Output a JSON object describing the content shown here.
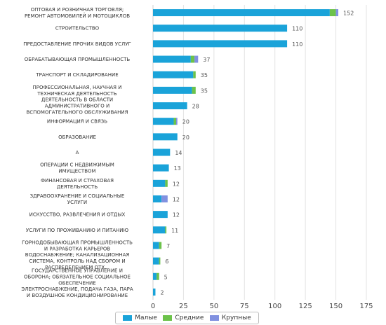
{
  "chart_data": {
    "type": "bar",
    "orientation": "horizontal",
    "stacked": true,
    "categories": [
      "ОПТОВАЯ И РОЗНИЧНАЯ ТОРГОВЛЯ; РЕМОНТ АВТОМОБИЛЕЙ И МОТОЦИКЛОВ",
      "СТРОИТЕЛЬСТВО",
      "ПРЕДОСТАВЛЕНИЕ ПРОЧИХ ВИДОВ УСЛУГ",
      "ОБРАБАТЫВАЮЩАЯ ПРОМЫШЛЕННОСТЬ",
      "ТРАНСПОРТ И СКЛАДИРОВАНИЕ",
      "ПРОФЕССИОНАЛЬНАЯ, НАУЧНАЯ И ТЕХНИЧЕСКАЯ ДЕЯТЕЛЬНОСТЬ",
      "ДЕЯТЕЛЬНОСТЬ В ОБЛАСТИ АДМИНИСТРАТИВНОГО И ВСПОМОГАТЕЛЬНОГО ОБСЛУЖИВАНИЯ",
      "ИНФОРМАЦИЯ И СВЯЗЬ",
      "ОБРАЗОВАНИЕ",
      "A",
      "ОПЕРАЦИИ С НЕДВИЖИМЫМ ИМУЩЕСТВОМ",
      "ФИНАНСОВАЯ И СТРАХОВАЯ ДЕЯТЕЛЬНОСТЬ",
      "ЗДРАВООХРАНЕНИЕ И СОЦИАЛЬНЫЕ УСЛУГИ",
      "ИСКУССТВО, РАЗВЛЕЧЕНИЯ И ОТДЫХ",
      "УСЛУГИ ПО ПРОЖИВАНИЮ И ПИТАНИЮ",
      "ГОРНОДОБЫВАЮЩАЯ ПРОМЫШЛЕННОСТЬ И РАЗРАБОТКА КАРЬЕРОВ",
      "ВОДОСНАБЖЕНИЕ; КАНАЛИЗАЦИОННАЯ СИСТЕМА, КОНТРОЛЬ НАД СБОРОМ И РАСПРЕДЕЛЕНИЕМ ОТХ...",
      "ГОСУДАРСТВЕННОЕ УПРАВЛЕНИЕ И ОБОРОНА; ОБЯЗАТЕЛЬНОЕ СОЦИАЛЬНОЕ ОБЕСПЕЧЕНИЕ",
      "ЭЛЕКТРОСНАБЖЕНИЕ, ПОДАЧА ГАЗА, ПАРА И ВОЗДУШНОЕ КОНДИЦИОНИРОВАНИЕ"
    ],
    "category_lines": [
      [
        "ОПТОВАЯ И РОЗНИЧНАЯ ТОРГОВЛЯ;",
        "РЕМОНТ АВТОМОБИЛЕЙ И МОТОЦИКЛОВ"
      ],
      [
        "СТРОИТЕЛЬСТВО"
      ],
      [
        "ПРЕДОСТАВЛЕНИЕ ПРОЧИХ ВИДОВ УСЛУГ"
      ],
      [
        "ОБРАБАТЫВАЮЩАЯ ПРОМЫШЛЕННОСТЬ"
      ],
      [
        "ТРАНСПОРТ И СКЛАДИРОВАНИЕ"
      ],
      [
        "ПРОФЕССИОНАЛЬНАЯ, НАУЧНАЯ И",
        "ТЕХНИЧЕСКАЯ ДЕЯТЕЛЬНОСТЬ"
      ],
      [
        "ДЕЯТЕЛЬНОСТЬ В ОБЛАСТИ",
        "АДМИНИСТРАТИВНОГО И",
        "ВСПОМОГАТЕЛЬНОГО ОБСЛУЖИВАНИЯ"
      ],
      [
        "ИНФОРМАЦИЯ И СВЯЗЬ"
      ],
      [
        "ОБРАЗОВАНИЕ"
      ],
      [
        "A"
      ],
      [
        "ОПЕРАЦИИ С НЕДВИЖИМЫМ",
        "ИМУЩЕСТВОМ"
      ],
      [
        "ФИНАНСОВАЯ И СТРАХОВАЯ",
        "ДЕЯТЕЛЬНОСТЬ"
      ],
      [
        "ЗДРАВООХРАНЕНИЕ И СОЦИАЛЬНЫЕ",
        "УСЛУГИ"
      ],
      [
        "ИСКУССТВО, РАЗВЛЕЧЕНИЯ И ОТДЫХ"
      ],
      [
        "УСЛУГИ ПО ПРОЖИВАНИЮ И ПИТАНИЮ"
      ],
      [
        "ГОРНОДОБЫВАЮЩАЯ ПРОМЫШЛЕННОСТЬ",
        "И РАЗРАБОТКА КАРЬЕРОВ"
      ],
      [
        "ВОДОСНАБЖЕНИЕ; КАНАЛИЗАЦИОННАЯ",
        "СИСТЕМА, КОНТРОЛЬ НАД СБОРОМ И",
        "РАСПРЕДЕЛЕНИЕМ ОТХ..."
      ],
      [
        "ГОСУДАРСТВЕННОЕ УПРАВЛЕНИЕ И",
        "ОБОРОНА; ОБЯЗАТЕЛЬНОЕ СОЦИАЛЬНОЕ",
        "ОБЕСПЕЧЕНИЕ"
      ],
      [
        "ЭЛЕКТРОСНАБЖЕНИЕ, ПОДАЧА ГАЗА, ПАРА",
        "И ВОЗДУШНОЕ КОНДИЦИОНИРОВАНИЕ"
      ]
    ],
    "series": [
      {
        "name": "Малые",
        "color": "#1aa3d9",
        "values": [
          145,
          110,
          110,
          31,
          33,
          32,
          28,
          17,
          20,
          14,
          13,
          10,
          7,
          12,
          10,
          5,
          5,
          3,
          2
        ]
      },
      {
        "name": "Средние",
        "color": "#6cc24a",
        "values": [
          5,
          0,
          0,
          3,
          2,
          3,
          0,
          2,
          0,
          0,
          0,
          2,
          0,
          0,
          1,
          2,
          1,
          2,
          0
        ]
      },
      {
        "name": "Крупные",
        "color": "#8191e0",
        "values": [
          2,
          0,
          0,
          3,
          0,
          0,
          0,
          1,
          0,
          0,
          0,
          0,
          5,
          0,
          0,
          0,
          0,
          0,
          0
        ]
      }
    ],
    "totals": [
      152,
      110,
      110,
      37,
      35,
      35,
      28,
      20,
      20,
      14,
      13,
      12,
      12,
      12,
      11,
      7,
      6,
      5,
      2
    ],
    "xticks": [
      0,
      25,
      50,
      75,
      100,
      125,
      150,
      175
    ],
    "xlim": [
      0,
      175
    ],
    "grid": true,
    "legend_position": "bottom"
  }
}
